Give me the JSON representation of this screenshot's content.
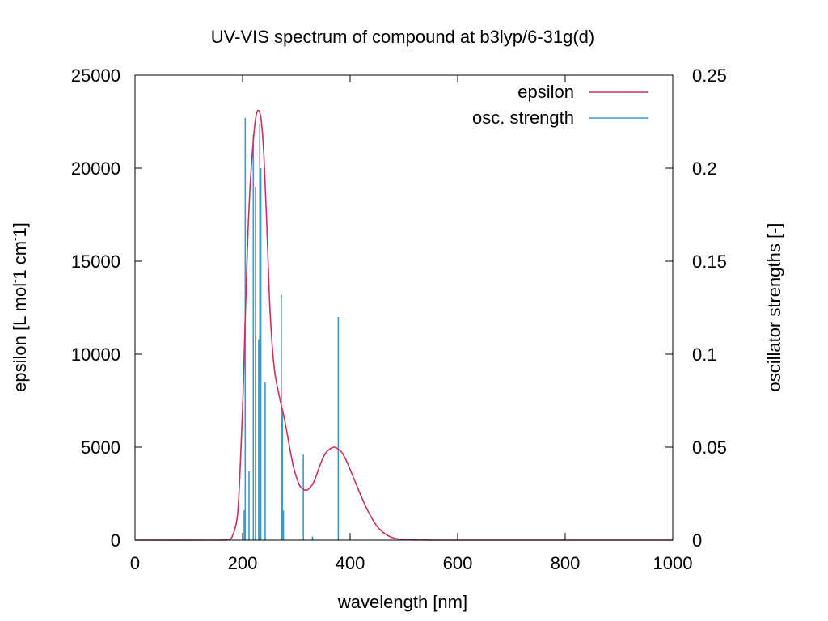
{
  "chart_data": {
    "type": "line",
    "title": "UV-VIS spectrum of compound at b3lyp/6-31g(d)",
    "xlabel": "wavelength [nm]",
    "ylabel": "epsilon [L mol",
    "ylabel_sup1": "-",
    "ylabel_mid": "1 cm",
    "ylabel_sup2": "-",
    "ylabel_end": "1]",
    "y2label": "oscillator strengths [-]",
    "xlim": [
      0,
      1000
    ],
    "ylim": [
      0,
      25000
    ],
    "y2lim": [
      0,
      0.25
    ],
    "x_ticks": [
      "0",
      "200",
      "400",
      "600",
      "800",
      "1000"
    ],
    "y_ticks": [
      "0",
      "5000",
      "10000",
      "15000",
      "20000",
      "25000"
    ],
    "y2_ticks": [
      "0",
      "0.05",
      "0.1",
      "0.15",
      "0.2",
      "0.25"
    ],
    "grid": false,
    "legend_position": "top-right",
    "series": [
      {
        "name": "epsilon",
        "kind": "line",
        "color": "#c8325a",
        "axis": "left",
        "x": [
          0,
          150,
          170,
          180,
          190,
          195,
          200,
          205,
          210,
          215,
          220,
          225,
          230,
          235,
          240,
          245,
          250,
          255,
          260,
          265,
          270,
          275,
          280,
          285,
          290,
          295,
          300,
          305,
          310,
          315,
          320,
          325,
          330,
          335,
          340,
          345,
          350,
          355,
          360,
          365,
          370,
          375,
          380,
          385,
          390,
          395,
          400,
          405,
          410,
          420,
          430,
          440,
          450,
          460,
          470,
          480,
          490,
          500,
          520,
          540,
          560,
          600,
          700,
          800,
          900,
          1000
        ],
        "values": [
          0,
          0,
          20,
          150,
          1200,
          3500,
          7000,
          12000,
          16500,
          19500,
          21500,
          22800,
          23100,
          22500,
          20500,
          17000,
          13000,
          10500,
          9000,
          8200,
          7500,
          6900,
          6200,
          5400,
          4600,
          3900,
          3400,
          3000,
          2800,
          2700,
          2700,
          2800,
          3000,
          3300,
          3700,
          4100,
          4450,
          4700,
          4850,
          4950,
          5000,
          4950,
          4850,
          4700,
          4450,
          4150,
          3800,
          3450,
          3100,
          2400,
          1750,
          1200,
          750,
          450,
          250,
          120,
          60,
          30,
          10,
          4,
          0,
          0,
          0,
          0,
          0,
          0
        ]
      },
      {
        "name": "osc. strength",
        "kind": "sticks",
        "color": "#3c9ac8",
        "axis": "right",
        "x": [
          203,
          205,
          212,
          220,
          224,
          230,
          232,
          234,
          242,
          272,
          274,
          276,
          313,
          330,
          378
        ],
        "values": [
          0.016,
          0.227,
          0.037,
          0.218,
          0.19,
          0.108,
          0.224,
          0.2,
          0.085,
          0.132,
          0.07,
          0.016,
          0.046,
          0.002,
          0.12
        ]
      }
    ]
  }
}
